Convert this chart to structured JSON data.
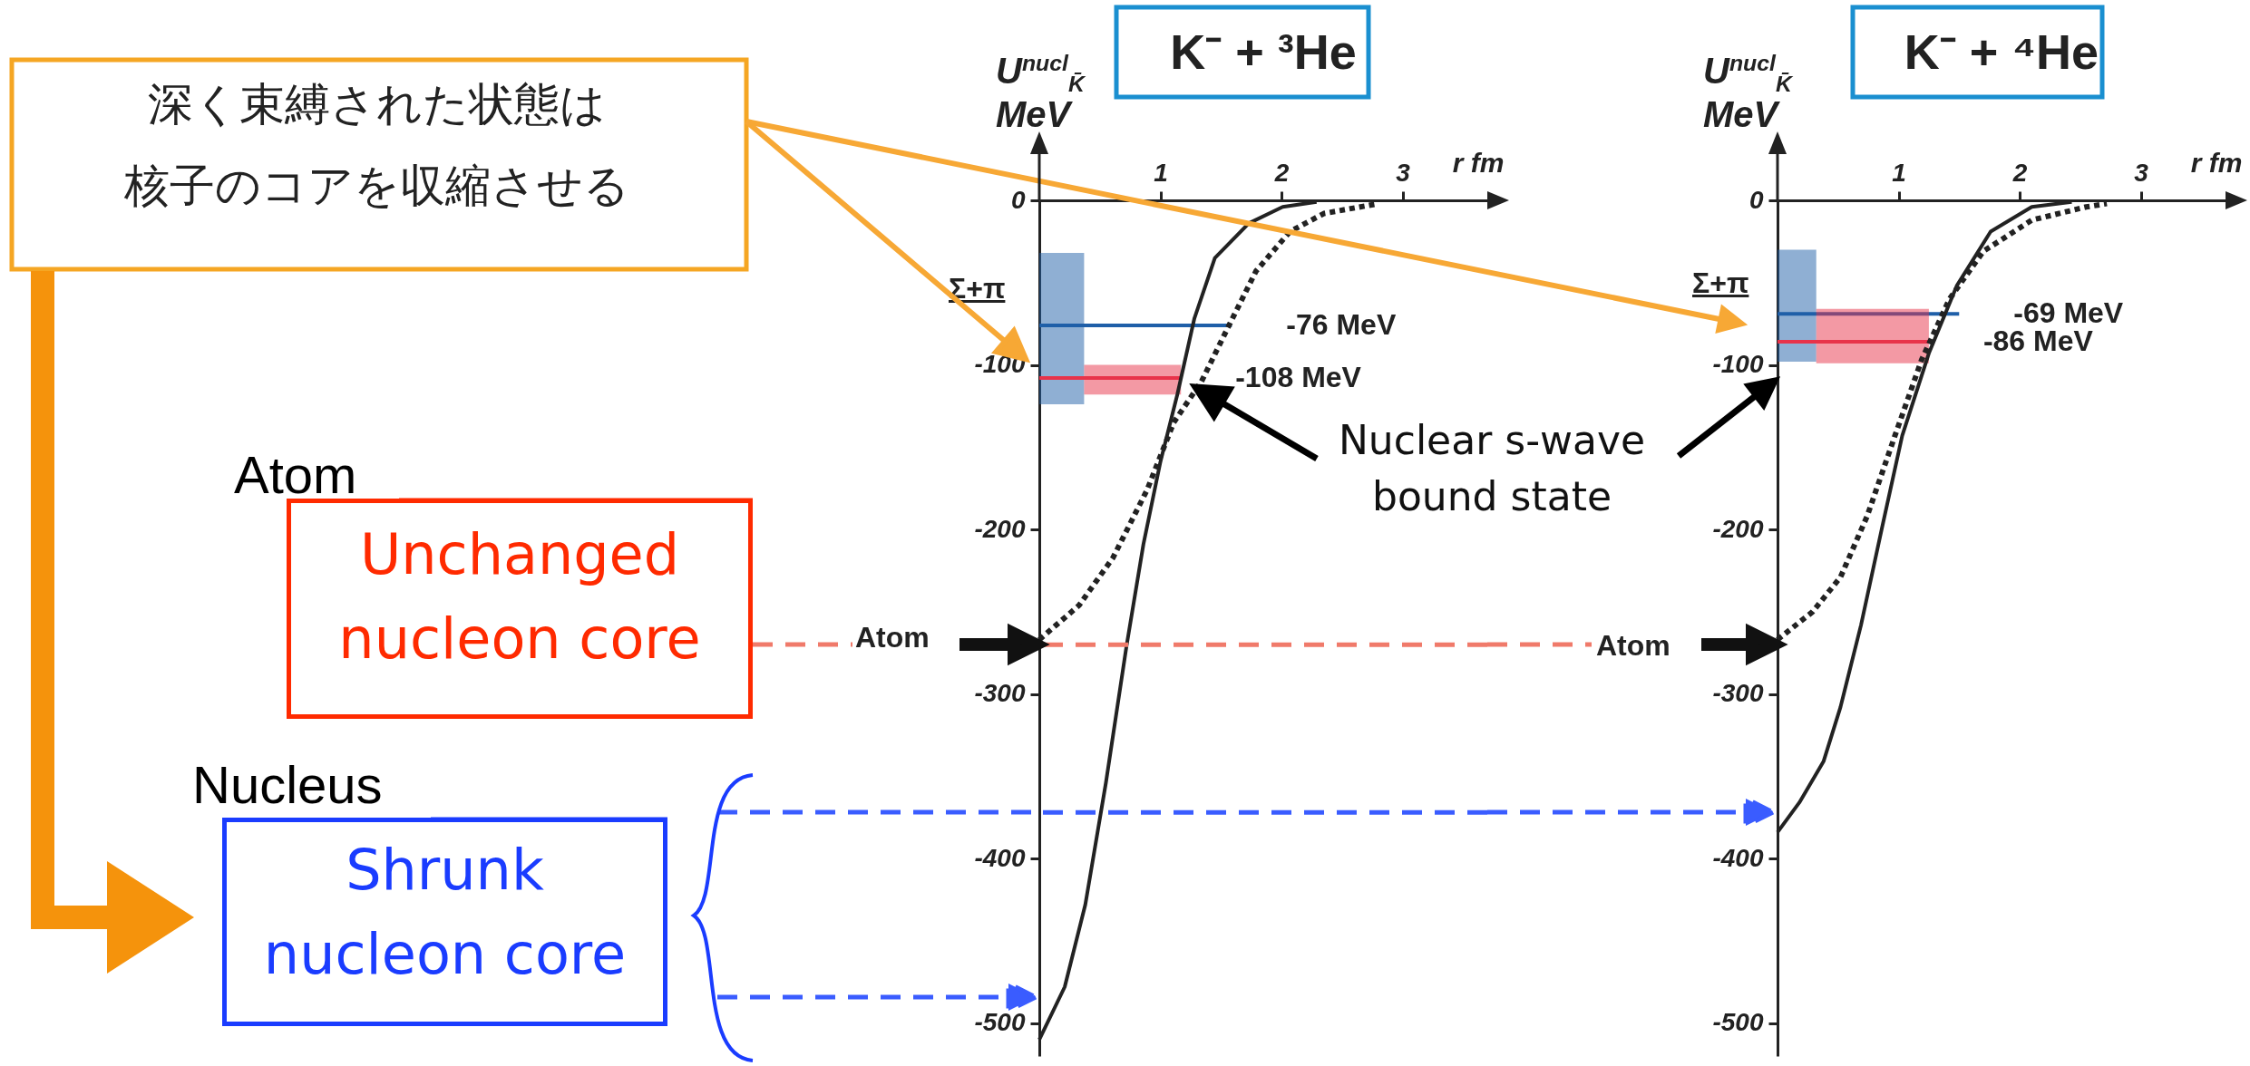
{
  "chart_data": [
    {
      "type": "line",
      "title": "K⁻ + ³He",
      "xlabel": "r fm",
      "ylabel": "U$^{nucl}$$_{K̄}$ MeV",
      "xlim": [
        0,
        3.7
      ],
      "ylim": [
        -520,
        0
      ],
      "xticks": [
        1,
        2,
        3
      ],
      "yticks": [
        -500,
        -400,
        -300,
        -200,
        -100,
        0
      ],
      "series": [
        {
          "color": "#1f5fa8",
          "x": [
            0,
            0.37,
            1.59
          ],
          "values": [
            -76,
            -76,
            -76
          ],
          "lower": [
            -124,
            -124,
            null
          ],
          "upper": [
            -32,
            -32,
            null
          ]
        },
        {
          "color": "#e8334a",
          "x": [
            0,
            0.37,
            1.17
          ],
          "values": [
            -108,
            -108,
            -108
          ],
          "lower": [
            null,
            -118,
            -118
          ],
          "upper": [
            null,
            -100,
            -100
          ]
        },
        {
          "color": "#222222",
          "line_style": "solid",
          "x": [
            0,
            0.21,
            0.38,
            0.55,
            0.72,
            0.86,
            1.0,
            1.14,
            1.28,
            1.45,
            1.73,
            2.01,
            2.29
          ],
          "values": [
            -510,
            -478,
            -428,
            -354,
            -271,
            -209,
            -159,
            -118,
            -72,
            -35,
            -14,
            -4,
            -1
          ]
        },
        {
          "color": "#222222",
          "line_style": "dotted",
          "x": [
            0,
            0.33,
            0.61,
            0.89,
            1.11,
            1.34,
            1.56,
            1.79,
            2.07,
            2.35,
            2.8
          ],
          "values": [
            -267,
            -246,
            -217,
            -176,
            -135,
            -110,
            -77,
            -43,
            -19,
            -8,
            -2
          ]
        }
      ],
      "ref_lines": [
        {
          "axis": "y",
          "value": -270,
          "color": "#f07a6a",
          "line_style": "dashed"
        },
        {
          "axis": "y",
          "value": -372,
          "color": "#3a5cff",
          "line_style": "dashed"
        }
      ],
      "annotations": [
        "深く束縛された状態は",
        "核子のコアを収縮させる",
        "Atom",
        "Unchanged\nnucleon core",
        "Nucleus",
        "Shrunk\nnucleon core",
        "Σ+π",
        "Atom",
        {
          "text": "-76 MeV",
          "x": 1.59,
          "y": -76
        },
        {
          "text": "-108 MeV",
          "x": 1.17,
          "y": -108
        },
        "Nuclear s-wave\nbound state"
      ]
    },
    {
      "type": "line",
      "title": "K⁻ + ⁴He",
      "xlabel": "r fm",
      "ylabel": "U$^{nucl}$$_{K̄}$ MeV",
      "xlim": [
        0,
        3.7
      ],
      "ylim": [
        -520,
        0
      ],
      "xticks": [
        1,
        2,
        3
      ],
      "yticks": [
        -500,
        -400,
        -300,
        -200,
        -100,
        0
      ],
      "series": [
        {
          "color": "#1f5fa8",
          "x": [
            0,
            0.32,
            1.5
          ],
          "values": [
            -69,
            -69,
            -69
          ],
          "lower": [
            -98,
            -98,
            null
          ],
          "upper": [
            -30,
            -30,
            null
          ]
        },
        {
          "color": "#e8334a",
          "x": [
            0,
            0.32,
            1.25
          ],
          "values": [
            -86,
            -86,
            -86
          ],
          "lower": [
            null,
            -99,
            -99
          ],
          "upper": [
            null,
            -66,
            -66
          ]
        },
        {
          "color": "#222222",
          "line_style": "solid",
          "x": [
            0,
            0.18,
            0.38,
            0.52,
            0.69,
            0.86,
            1.03,
            1.25,
            1.48,
            1.76,
            2.1,
            2.43
          ],
          "values": [
            -384,
            -366,
            -341,
            -308,
            -258,
            -200,
            -143,
            -93,
            -52,
            -19,
            -4,
            -1
          ]
        },
        {
          "color": "#222222",
          "line_style": "dotted",
          "x": [
            0,
            0.29,
            0.52,
            0.74,
            0.97,
            1.19,
            1.42,
            1.7,
            2.1,
            2.55,
            2.72
          ],
          "values": [
            -267,
            -250,
            -229,
            -192,
            -143,
            -97,
            -60,
            -31,
            -12,
            -4,
            -2
          ]
        }
      ],
      "annotations": [
        "Σ+π",
        "Atom",
        {
          "text": "-69 MeV",
          "x": 1.5,
          "y": -69
        },
        {
          "text": "-86 MeV",
          "x": 1.25,
          "y": -86
        }
      ]
    }
  ]
}
